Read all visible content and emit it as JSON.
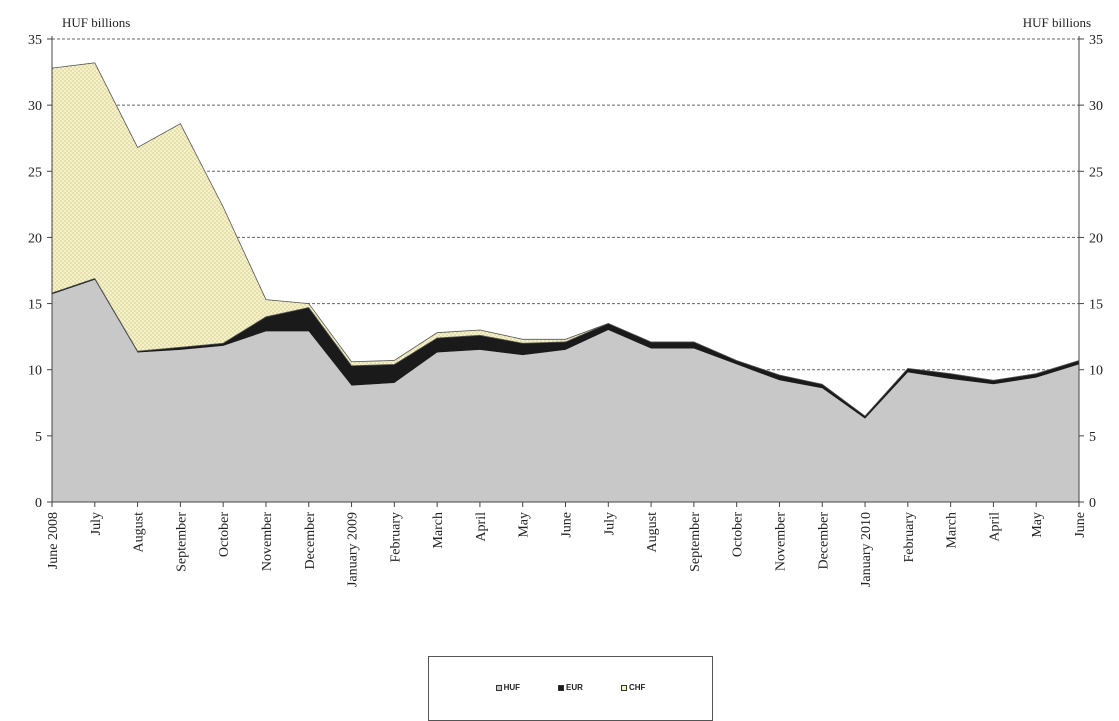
{
  "chart_data": {
    "type": "area",
    "stacked": true,
    "unit_left": "HUF billions",
    "unit_right": "HUF billions",
    "categories": [
      "June 2008",
      "July",
      "August",
      "September",
      "October",
      "November",
      "December",
      "January 2009",
      "February",
      "March",
      "April",
      "May",
      "June",
      "July",
      "August",
      "September",
      "October",
      "November",
      "December",
      "January 2010",
      "February",
      "March",
      "April",
      "May",
      "June"
    ],
    "series": [
      {
        "name": "HUF",
        "color": "#c8c8c8",
        "values": [
          15.7,
          16.8,
          11.3,
          11.5,
          11.8,
          12.9,
          12.9,
          8.8,
          9.0,
          11.3,
          11.5,
          11.1,
          11.5,
          13.0,
          11.6,
          11.6,
          10.4,
          9.2,
          8.6,
          6.3,
          9.8,
          9.3,
          8.9,
          9.4,
          10.4
        ]
      },
      {
        "name": "EUR",
        "color": "#1a1a1a",
        "values": [
          0.1,
          0.1,
          0.1,
          0.2,
          0.2,
          1.1,
          1.8,
          1.5,
          1.4,
          1.1,
          1.1,
          0.9,
          0.6,
          0.5,
          0.5,
          0.5,
          0.3,
          0.4,
          0.3,
          0.2,
          0.3,
          0.4,
          0.3,
          0.3,
          0.3
        ]
      },
      {
        "name": "CHF",
        "color": "#f6f2c4",
        "values": [
          17.0,
          16.3,
          15.4,
          16.9,
          10.3,
          1.3,
          0.3,
          0.3,
          0.3,
          0.4,
          0.4,
          0.3,
          0.2,
          0.0,
          0.0,
          0.0,
          0.0,
          0.0,
          0.0,
          0.0,
          0.0,
          0.0,
          0.0,
          0.0,
          0.0
        ]
      }
    ],
    "ylim": [
      0,
      35
    ],
    "yticks": [
      0,
      5,
      10,
      15,
      20,
      25,
      30,
      35
    ],
    "grid": "horizontal dashed",
    "legend": [
      "HUF",
      "EUR",
      "CHF"
    ],
    "legend_position": "bottom"
  }
}
